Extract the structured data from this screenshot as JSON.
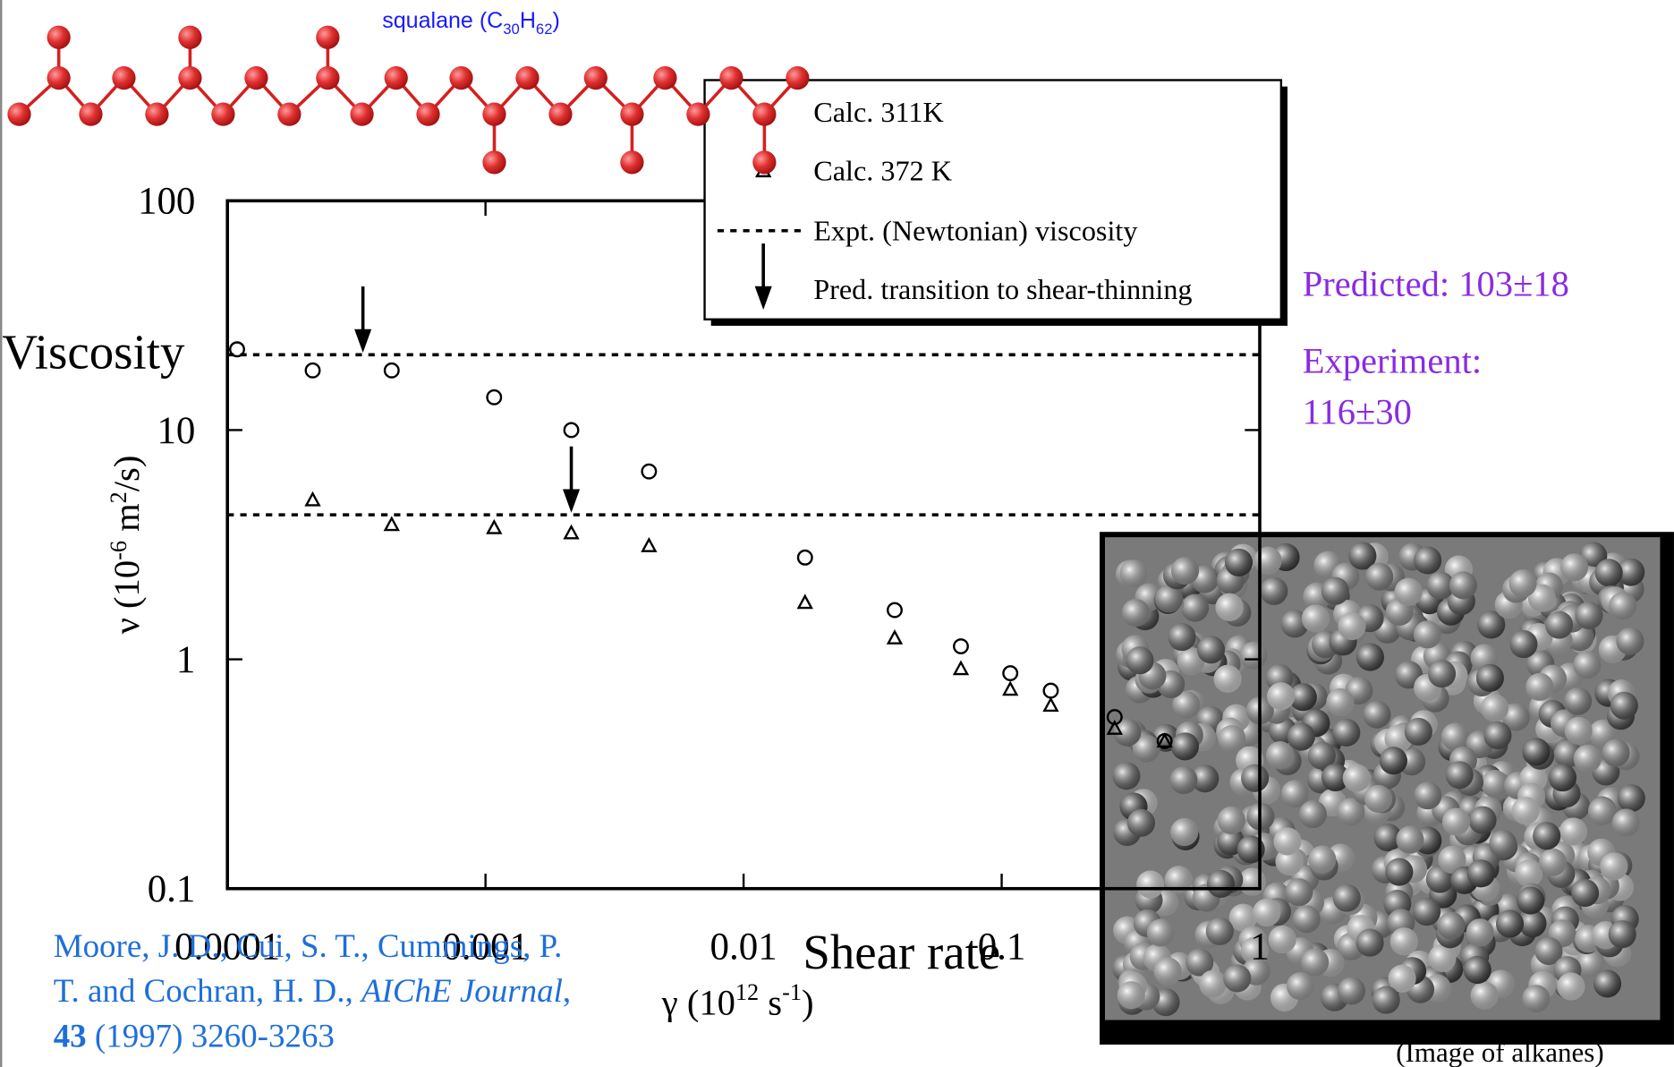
{
  "molecule_label": [
    "squalane (C",
    "30",
    "H",
    "62",
    ")"
  ],
  "annotations": {
    "viscosity": "Viscosity",
    "shear_rate": "Shear rate",
    "predicted": "Predicted: 103±18",
    "experiment": [
      "Experiment:",
      "116±30"
    ]
  },
  "citation": {
    "line1": "Moore, J. D., Cui, S. T., Cummings, P.",
    "line2": "T. and Cochran, H. D., ",
    "journal": "AIChE Journal",
    "comma": ",",
    "volume": "43",
    "rest": " (1997) 3260-3263"
  },
  "image_caption": "(Image of alkanes)",
  "chart_data": {
    "type": "scatter",
    "y_label": [
      "ν (10",
      "-6",
      " m",
      "2",
      "/s)"
    ],
    "x_label": [
      "γ (10",
      "12",
      " s",
      "-1",
      ")"
    ],
    "log_x": true,
    "log_y": true,
    "xlim": [
      0.0001,
      1
    ],
    "xticks": [
      0.0001,
      0.001,
      0.01,
      0.1,
      1
    ],
    "ylim": [
      0.1,
      100
    ],
    "yticks": [
      0.1,
      1,
      10,
      100
    ],
    "series": [
      {
        "name": "Calc. 311K",
        "marker": "circle",
        "color": "#000000",
        "x": [
          0.000109,
          0.000214,
          0.000433,
          0.00108,
          0.00215,
          0.0043,
          0.0173,
          0.0385,
          0.0695,
          0.108,
          0.155,
          0.274,
          0.428
        ],
        "values": [
          22.5,
          18.2,
          18.2,
          13.9,
          10,
          6.6,
          2.78,
          1.64,
          1.14,
          0.87,
          0.73,
          0.56,
          0.44
        ]
      },
      {
        "name": "Calc. 372 K",
        "marker": "triangle",
        "color": "#000000",
        "x": [
          0.000214,
          0.000433,
          0.00108,
          0.00215,
          0.0043,
          0.0173,
          0.0385,
          0.0695,
          0.108,
          0.155,
          0.274,
          0.428
        ],
        "values": [
          4.96,
          3.87,
          3.75,
          3.56,
          3.13,
          1.77,
          1.24,
          0.91,
          0.74,
          0.63,
          0.5,
          0.44
        ]
      }
    ],
    "reference_lines": {
      "name": "Expt. (Newtonian) viscosity",
      "values": [
        21.3,
        4.27
      ]
    },
    "arrows": {
      "name": "Pred. transition to shear-thinning",
      "x": [
        0.000335,
        0.00215
      ],
      "values": [
        21.3,
        4.27
      ]
    }
  }
}
